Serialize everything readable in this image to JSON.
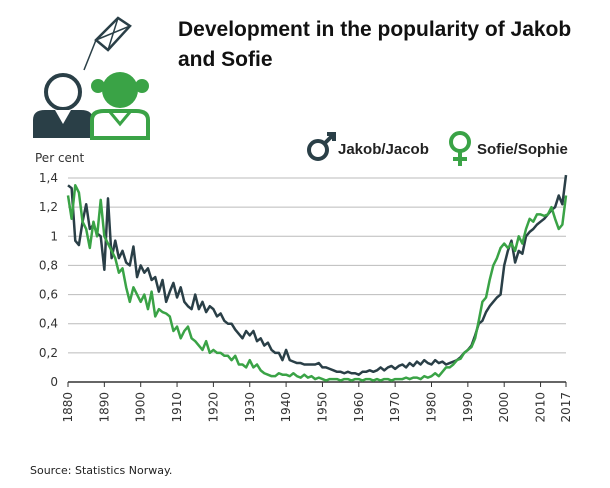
{
  "chart_data": {
    "type": "line",
    "title": [
      "Development in the popularity of Jakob",
      "and Sofie"
    ],
    "y_label": "Per cent",
    "source": "Source: Statistics Norway.",
    "x": [
      1880,
      1881,
      1882,
      1883,
      1884,
      1885,
      1886,
      1887,
      1888,
      1889,
      1890,
      1891,
      1892,
      1893,
      1894,
      1895,
      1896,
      1897,
      1898,
      1899,
      1900,
      1901,
      1902,
      1903,
      1904,
      1905,
      1906,
      1907,
      1908,
      1909,
      1910,
      1911,
      1912,
      1913,
      1914,
      1915,
      1916,
      1917,
      1918,
      1919,
      1920,
      1921,
      1922,
      1923,
      1924,
      1925,
      1926,
      1927,
      1928,
      1929,
      1930,
      1931,
      1932,
      1933,
      1934,
      1935,
      1936,
      1937,
      1938,
      1939,
      1940,
      1941,
      1942,
      1943,
      1944,
      1945,
      1946,
      1947,
      1948,
      1949,
      1950,
      1951,
      1952,
      1953,
      1954,
      1955,
      1956,
      1957,
      1958,
      1959,
      1960,
      1961,
      1962,
      1963,
      1964,
      1965,
      1966,
      1967,
      1968,
      1969,
      1970,
      1971,
      1972,
      1973,
      1974,
      1975,
      1976,
      1977,
      1978,
      1979,
      1980,
      1981,
      1982,
      1983,
      1984,
      1985,
      1986,
      1987,
      1988,
      1989,
      1990,
      1991,
      1992,
      1993,
      1994,
      1995,
      1996,
      1997,
      1998,
      1999,
      2000,
      2001,
      2002,
      2003,
      2004,
      2005,
      2006,
      2007,
      2008,
      2009,
      2010,
      2011,
      2012,
      2013,
      2014,
      2015,
      2016,
      2017
    ],
    "series": [
      {
        "name": "Jakob/Jacob",
        "color": "#2a3f47",
        "values": [
          1.35,
          1.33,
          0.97,
          0.94,
          1.1,
          1.22,
          1.05,
          1.08,
          1.02,
          1.0,
          0.77,
          1.26,
          0.85,
          0.97,
          0.85,
          0.9,
          0.82,
          0.8,
          0.93,
          0.72,
          0.8,
          0.75,
          0.78,
          0.7,
          0.72,
          0.62,
          0.7,
          0.55,
          0.62,
          0.68,
          0.58,
          0.65,
          0.55,
          0.52,
          0.5,
          0.6,
          0.5,
          0.55,
          0.48,
          0.52,
          0.5,
          0.45,
          0.47,
          0.42,
          0.4,
          0.4,
          0.36,
          0.33,
          0.3,
          0.35,
          0.32,
          0.35,
          0.28,
          0.3,
          0.25,
          0.27,
          0.22,
          0.2,
          0.2,
          0.15,
          0.22,
          0.15,
          0.14,
          0.13,
          0.13,
          0.12,
          0.12,
          0.12,
          0.12,
          0.13,
          0.1,
          0.1,
          0.09,
          0.08,
          0.07,
          0.07,
          0.06,
          0.07,
          0.06,
          0.06,
          0.05,
          0.07,
          0.07,
          0.08,
          0.07,
          0.08,
          0.1,
          0.08,
          0.1,
          0.11,
          0.09,
          0.11,
          0.12,
          0.1,
          0.13,
          0.11,
          0.14,
          0.12,
          0.15,
          0.13,
          0.12,
          0.15,
          0.13,
          0.14,
          0.12,
          0.13,
          0.14,
          0.15,
          0.17,
          0.2,
          0.22,
          0.25,
          0.32,
          0.4,
          0.42,
          0.48,
          0.52,
          0.55,
          0.58,
          0.6,
          0.8,
          0.9,
          0.97,
          0.82,
          0.9,
          0.88,
          1.0,
          1.03,
          1.05,
          1.08,
          1.1,
          1.12,
          1.15,
          1.18,
          1.2,
          1.28,
          1.22,
          1.42
        ]
      },
      {
        "name": "Sofie/Sophie",
        "color": "#3aa346",
        "values": [
          1.28,
          1.12,
          1.35,
          1.3,
          1.1,
          1.05,
          0.92,
          1.1,
          1.0,
          1.25,
          1.0,
          0.95,
          0.9,
          0.85,
          0.75,
          0.78,
          0.65,
          0.55,
          0.65,
          0.6,
          0.55,
          0.6,
          0.5,
          0.62,
          0.45,
          0.5,
          0.48,
          0.47,
          0.45,
          0.35,
          0.38,
          0.3,
          0.35,
          0.38,
          0.3,
          0.28,
          0.25,
          0.22,
          0.28,
          0.2,
          0.22,
          0.2,
          0.2,
          0.18,
          0.18,
          0.15,
          0.18,
          0.12,
          0.12,
          0.1,
          0.15,
          0.1,
          0.12,
          0.08,
          0.06,
          0.05,
          0.04,
          0.04,
          0.06,
          0.05,
          0.05,
          0.04,
          0.06,
          0.04,
          0.03,
          0.05,
          0.03,
          0.04,
          0.02,
          0.03,
          0.02,
          0.01,
          0.02,
          0.02,
          0.02,
          0.01,
          0.02,
          0.02,
          0.01,
          0.02,
          0.02,
          0.01,
          0.02,
          0.02,
          0.01,
          0.02,
          0.01,
          0.02,
          0.02,
          0.01,
          0.02,
          0.02,
          0.02,
          0.03,
          0.02,
          0.03,
          0.03,
          0.02,
          0.04,
          0.03,
          0.04,
          0.06,
          0.04,
          0.07,
          0.1,
          0.1,
          0.12,
          0.15,
          0.16,
          0.2,
          0.22,
          0.24,
          0.3,
          0.42,
          0.55,
          0.58,
          0.7,
          0.8,
          0.85,
          0.92,
          0.95,
          0.92,
          0.95,
          0.9,
          1.0,
          0.95,
          1.05,
          1.12,
          1.1,
          1.15,
          1.15,
          1.14,
          1.15,
          1.2,
          1.12,
          1.05,
          1.08,
          1.28
        ]
      }
    ],
    "xlim": [
      1880,
      2017
    ],
    "xticks": [
      1880,
      1890,
      1900,
      1910,
      1920,
      1930,
      1940,
      1950,
      1960,
      1970,
      1980,
      1990,
      2000,
      2010,
      2017
    ],
    "ylim": [
      0,
      1.4
    ],
    "yticks": [
      0,
      {
        "value": 0.2,
        "label": "0,2"
      },
      {
        "value": 0.4,
        "label": "0,4"
      },
      {
        "value": 0.6,
        "label": "0,6"
      },
      {
        "value": 0.8,
        "label": "0,8"
      },
      1,
      {
        "value": 1.2,
        "label": "1,2"
      },
      {
        "value": 1.4,
        "label": "1,4"
      }
    ],
    "grid": true
  }
}
